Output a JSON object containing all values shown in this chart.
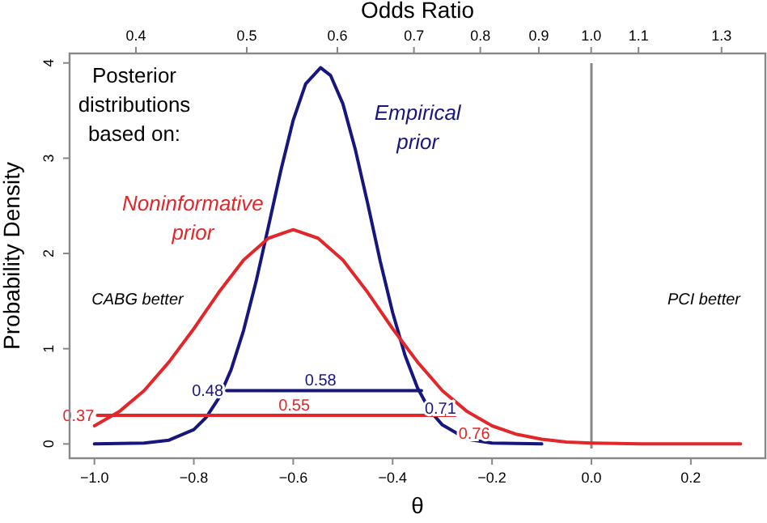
{
  "chart_data": {
    "type": "line",
    "xlabel": "θ",
    "ylabel": "Probability Density",
    "x2label": "Odds Ratio",
    "legend_title": "Posterior distributions based on:",
    "xlim": [
      -1.05,
      0.35
    ],
    "ylim": [
      -0.15,
      4.1
    ],
    "xticks": [
      {
        "value": -1,
        "label": "−1.0"
      },
      {
        "value": -0.8,
        "label": "−0.8"
      },
      {
        "value": -0.6,
        "label": "−0.6"
      },
      {
        "value": -0.4,
        "label": "−0.4"
      },
      {
        "value": -0.2,
        "label": "−0.2"
      },
      {
        "value": 0,
        "label": "0.0"
      },
      {
        "value": 0.2,
        "label": "0.2"
      }
    ],
    "yticks": [
      0,
      1,
      2,
      3,
      4
    ],
    "x2lim": [
      0.35,
      1.42
    ],
    "log": "x2",
    "x2ticks": [
      0.4,
      0.5,
      0.6,
      0.7,
      0.8,
      0.9,
      {
        "value": 1,
        "label": "1.0"
      },
      1.1,
      1.3
    ],
    "grid": false,
    "marker": "none",
    "line_style": "solid",
    "legend": "top left",
    "series": [
      {
        "name": "Empirical prior",
        "color": "#16167e",
        "x": [
          -1,
          -0.9,
          -0.85,
          -0.8,
          -0.775,
          -0.75,
          -0.725,
          -0.7,
          -0.675,
          -0.65,
          -0.625,
          -0.6,
          -0.575,
          -0.545,
          -0.525,
          -0.5,
          -0.475,
          -0.45,
          -0.425,
          -0.4,
          -0.375,
          -0.35,
          -0.325,
          -0.3,
          -0.25,
          -0.2,
          -0.1
        ],
        "values": [
          0,
          0.01,
          0.04,
          0.15,
          0.28,
          0.48,
          0.78,
          1.19,
          1.7,
          2.28,
          2.87,
          3.4,
          3.78,
          3.95,
          3.87,
          3.57,
          3.09,
          2.52,
          1.92,
          1.38,
          0.93,
          0.59,
          0.35,
          0.2,
          0.05,
          0.01,
          0
        ]
      },
      {
        "name": "Noninformative prior",
        "color": "#e3262a",
        "x": [
          -1,
          -0.95,
          -0.9,
          -0.85,
          -0.8,
          -0.75,
          -0.7,
          -0.65,
          -0.6,
          -0.55,
          -0.5,
          -0.45,
          -0.4,
          -0.35,
          -0.3,
          -0.25,
          -0.2,
          -0.15,
          -0.1,
          -0.05,
          0,
          0.1,
          0.2,
          0.3
        ],
        "values": [
          0.19,
          0.34,
          0.56,
          0.86,
          1.21,
          1.59,
          1.93,
          2.16,
          2.25,
          2.16,
          1.93,
          1.59,
          1.21,
          0.86,
          0.56,
          0.34,
          0.19,
          0.1,
          0.05,
          0.02,
          0.01,
          0,
          0,
          0
        ]
      },
      {
        "color": "#e3262a",
        "x": [
          -0.994,
          -0.598,
          -0.274
        ],
        "values": [
          0.3,
          0.3,
          0.3
        ]
      },
      {
        "color": "#16167e",
        "x": [
          -0.734,
          -0.545,
          -0.342
        ],
        "values": [
          0.56,
          0.56,
          0.56
        ]
      }
    ],
    "ref_lines": [
      {
        "axis": "x",
        "value": 0,
        "color": "#888888"
      }
    ],
    "annotations": [
      "CABG better",
      "PCI better",
      {
        "text": "0.37",
        "x": -0.994,
        "y": 0.3
      },
      {
        "text": "0.55",
        "x": -0.598,
        "y": 0.3
      },
      {
        "text": "0.76",
        "x": -0.274,
        "y": 0.3
      },
      {
        "text": "0.48",
        "x": -0.734,
        "y": 0.56
      },
      {
        "text": "0.58",
        "x": -0.545,
        "y": 0.56
      },
      {
        "text": "0.71",
        "x": -0.342,
        "y": 0.56
      }
    ]
  }
}
